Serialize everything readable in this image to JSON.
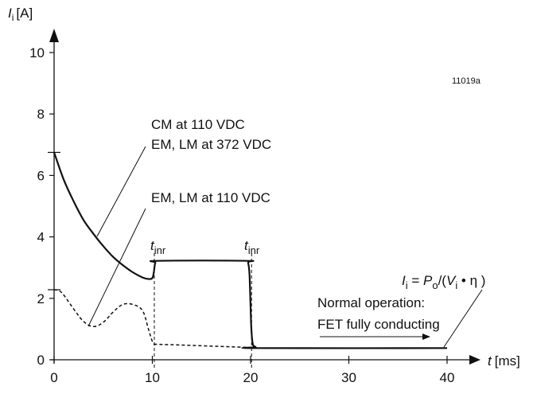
{
  "chart_data": {
    "type": "line",
    "figure_id": "11019a",
    "x_axis": {
      "var": "t",
      "unit": "[ms]",
      "range": [
        0,
        44
      ],
      "ticks": [
        {
          "value": 0,
          "label": "0"
        },
        {
          "value": 10,
          "label": "10"
        },
        {
          "value": 20,
          "label": "20"
        },
        {
          "value": 30,
          "label": "30"
        },
        {
          "value": 40,
          "label": "40"
        }
      ]
    },
    "y_axis": {
      "var": "I",
      "sub": "i",
      "unit": "[A]",
      "range": [
        0,
        11
      ],
      "ticks": [
        {
          "value": 0,
          "label": "0"
        },
        {
          "value": 2,
          "label": "2"
        },
        {
          "value": 4,
          "label": "4"
        },
        {
          "value": 6,
          "label": "6"
        },
        {
          "value": 8,
          "label": "8"
        },
        {
          "value": 10,
          "label": "10"
        }
      ]
    },
    "grid": false,
    "series": [
      {
        "name": "CM at 110 VDC / EM, LM at 372 VDC",
        "style": "solid",
        "points": [
          [
            0,
            6.75
          ],
          [
            1,
            5.85
          ],
          [
            2,
            5.15
          ],
          [
            3,
            4.55
          ],
          [
            4,
            4.1
          ],
          [
            5,
            3.7
          ],
          [
            6,
            3.35
          ],
          [
            7,
            3.08
          ],
          [
            8,
            2.85
          ],
          [
            9,
            2.68
          ],
          [
            9.6,
            2.63
          ],
          [
            10,
            2.66
          ],
          [
            10.15,
            2.85
          ],
          [
            10.3,
            3.15
          ],
          [
            10.6,
            3.22
          ],
          [
            19.5,
            3.22
          ],
          [
            19.75,
            3.15
          ],
          [
            19.9,
            2.7
          ],
          [
            20.05,
            1.2
          ],
          [
            20.2,
            0.55
          ],
          [
            20.5,
            0.42
          ],
          [
            21,
            0.38
          ],
          [
            40,
            0.38
          ]
        ]
      },
      {
        "name": "EM, LM at 110 VDC",
        "style": "dashed",
        "points": [
          [
            0,
            2.28
          ],
          [
            0.5,
            2.25
          ],
          [
            1,
            2.1
          ],
          [
            2,
            1.65
          ],
          [
            3,
            1.25
          ],
          [
            4,
            1.08
          ],
          [
            5,
            1.22
          ],
          [
            6,
            1.55
          ],
          [
            7,
            1.8
          ],
          [
            8,
            1.8
          ],
          [
            9,
            1.6
          ],
          [
            9.6,
            1.0
          ],
          [
            10,
            0.6
          ],
          [
            10.3,
            0.5
          ],
          [
            11,
            0.5
          ],
          [
            20,
            0.4
          ],
          [
            20.5,
            0.38
          ],
          [
            40,
            0.38
          ]
        ]
      }
    ],
    "annotations": {
      "cm_line1": "CM at 110 VDC",
      "cm_line2": "EM, LM at 372 VDC",
      "em_line": "EM, LM at 110 VDC",
      "tinr_main": "t",
      "tinr_sub": "inr",
      "normal_line1": "Normal operation:",
      "normal_line2": "FET fully conducting",
      "formula": {
        "p1": "I",
        "p1_sub": "i",
        "eq": " = ",
        "p2": "P",
        "p2_sub": "o",
        "slash": "/(",
        "p3": "V",
        "p3_sub": "i",
        "tail": " • η )"
      }
    },
    "markers": {
      "t_inr": [
        10.2,
        20.1
      ],
      "y_marks": [
        6.75,
        2.28
      ]
    }
  }
}
